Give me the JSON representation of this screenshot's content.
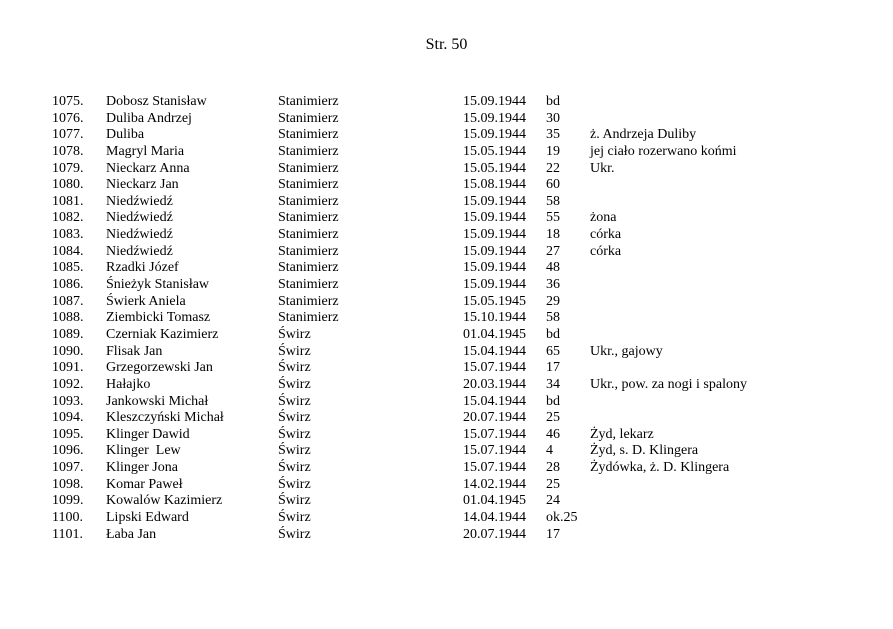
{
  "page_title": "Str. 50",
  "rows": [
    {
      "num": "1075.",
      "name": "Dobosz Stanisław",
      "place": "Stanimierz",
      "date": "15.09.1944",
      "age": "bd",
      "note": ""
    },
    {
      "num": "1076.",
      "name": "Duliba Andrzej",
      "place": "Stanimierz",
      "date": "15.09.1944",
      "age": "30",
      "note": ""
    },
    {
      "num": "1077.",
      "name": "Duliba",
      "place": "Stanimierz",
      "date": "15.09.1944",
      "age": "35",
      "note": "ż. Andrzeja Duliby"
    },
    {
      "num": "1078.",
      "name": "Magryl Maria",
      "place": "Stanimierz",
      "date": "15.05.1944",
      "age": "19",
      "note": "jej ciało rozerwano końmi"
    },
    {
      "num": "1079.",
      "name": "Nieckarz Anna",
      "place": "Stanimierz",
      "date": "15.05.1944",
      "age": "22",
      "note": "Ukr."
    },
    {
      "num": "1080.",
      "name": "Nieckarz Jan",
      "place": "Stanimierz",
      "date": "15.08.1944",
      "age": "60",
      "note": ""
    },
    {
      "num": "1081.",
      "name": "Niedźwiedź",
      "place": "Stanimierz",
      "date": "15.09.1944",
      "age": "58",
      "note": ""
    },
    {
      "num": "1082.",
      "name": "Niedźwiedź",
      "place": "Stanimierz",
      "date": "15.09.1944",
      "age": "55",
      "note": "żona"
    },
    {
      "num": "1083.",
      "name": "Niedźwiedź",
      "place": "Stanimierz",
      "date": "15.09.1944",
      "age": "18",
      "note": "córka"
    },
    {
      "num": "1084.",
      "name": "Niedźwiedź",
      "place": "Stanimierz",
      "date": "15.09.1944",
      "age": "27",
      "note": "córka"
    },
    {
      "num": "1085.",
      "name": "Rzadki Józef",
      "place": "Stanimierz",
      "date": "15.09.1944",
      "age": "48",
      "note": ""
    },
    {
      "num": "1086.",
      "name": "Śnieżyk Stanisław",
      "place": "Stanimierz",
      "date": "15.09.1944",
      "age": "36",
      "note": ""
    },
    {
      "num": "1087.",
      "name": "Świerk Aniela",
      "place": "Stanimierz",
      "date": "15.05.1945",
      "age": "29",
      "note": ""
    },
    {
      "num": "1088.",
      "name": "Ziembicki Tomasz",
      "place": "Stanimierz",
      "date": "15.10.1944",
      "age": "58",
      "note": ""
    },
    {
      "num": "1089.",
      "name": "Czerniak Kazimierz",
      "place": "Świrz",
      "date": "01.04.1945",
      "age": "bd",
      "note": ""
    },
    {
      "num": "1090.",
      "name": "Flisak Jan",
      "place": "Świrz",
      "date": "15.04.1944",
      "age": "65",
      "note": "Ukr., gajowy"
    },
    {
      "num": "1091.",
      "name": "Grzegorzewski Jan",
      "place": "Świrz",
      "date": "15.07.1944",
      "age": "17",
      "note": ""
    },
    {
      "num": "1092.",
      "name": "Hałajko",
      "place": "Świrz",
      "date": "20.03.1944",
      "age": "34",
      "note": "Ukr., pow. za nogi i spalony"
    },
    {
      "num": "1093.",
      "name": "Jankowski Michał",
      "place": "Świrz",
      "date": "15.04.1944",
      "age": "bd",
      "note": ""
    },
    {
      "num": "1094.",
      "name": "Kleszczyński Michał",
      "place": "Świrz",
      "date": "20.07.1944",
      "age": "25",
      "note": ""
    },
    {
      "num": "1095.",
      "name": "Klinger Dawid",
      "place": "Świrz",
      "date": "15.07.1944",
      "age": "46",
      "note": "Żyd, lekarz"
    },
    {
      "num": "1096.",
      "name": "Klinger  Lew",
      "place": "Świrz",
      "date": "15.07.1944",
      "age": "4",
      "note": "Żyd, s. D. Klingera"
    },
    {
      "num": "1097.",
      "name": "Klinger Jona",
      "place": "Świrz",
      "date": "15.07.1944",
      "age": "28",
      "note": "Żydówka, ż. D. Klingera"
    },
    {
      "num": "1098.",
      "name": "Komar Paweł",
      "place": "Świrz",
      "date": "14.02.1944",
      "age": "25",
      "note": ""
    },
    {
      "num": "1099.",
      "name": "Kowalów Kazimierz",
      "place": "Świrz",
      "date": "01.04.1945",
      "age": "24",
      "note": ""
    },
    {
      "num": "1100.",
      "name": "Lipski Edward",
      "place": "Świrz",
      "date": "14.04.1944",
      "age": "ok.25",
      "note": ""
    },
    {
      "num": "1101.",
      "name": "Łaba Jan",
      "place": "Świrz",
      "date": "20.07.1944",
      "age": "17",
      "note": ""
    }
  ]
}
